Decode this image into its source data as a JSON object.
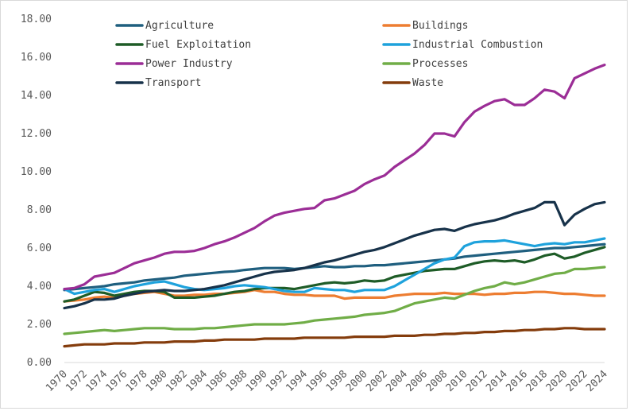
{
  "chart_data": {
    "type": "line",
    "title": "",
    "xlabel": "",
    "ylabel": "",
    "ylim": [
      0,
      18
    ],
    "y_ticks": [
      "0.00",
      "2.00",
      "4.00",
      "6.00",
      "8.00",
      "10.00",
      "12.00",
      "14.00",
      "16.00",
      "18.00"
    ],
    "x_tick_labels": [
      "1970",
      "1972",
      "1974",
      "1976",
      "1978",
      "1980",
      "1982",
      "1984",
      "1986",
      "1988",
      "1990",
      "1992",
      "1994",
      "1996",
      "1998",
      "2000",
      "2002",
      "2004",
      "2006",
      "2008",
      "2010",
      "2012",
      "2014",
      "2016",
      "2018",
      "2020",
      "2022",
      "2024"
    ],
    "grid": "none",
    "legend_placement": "top",
    "x": [
      1970,
      1971,
      1972,
      1973,
      1974,
      1975,
      1976,
      1977,
      1978,
      1979,
      1980,
      1981,
      1982,
      1983,
      1984,
      1985,
      1986,
      1987,
      1988,
      1989,
      1990,
      1991,
      1992,
      1993,
      1994,
      1995,
      1996,
      1997,
      1998,
      1999,
      2000,
      2001,
      2002,
      2003,
      2004,
      2005,
      2006,
      2007,
      2008,
      2009,
      2010,
      2011,
      2012,
      2013,
      2014,
      2015,
      2016,
      2017,
      2018,
      2019,
      2020,
      2021,
      2022,
      2023,
      2024
    ],
    "series": [
      {
        "name": "Agriculture",
        "color": "#1f5f7f",
        "values": [
          3.8,
          3.85,
          3.9,
          3.95,
          4.0,
          4.1,
          4.15,
          4.2,
          4.3,
          4.35,
          4.4,
          4.45,
          4.55,
          4.6,
          4.65,
          4.7,
          4.75,
          4.78,
          4.85,
          4.9,
          4.95,
          4.95,
          4.95,
          4.9,
          4.95,
          5.0,
          5.05,
          5.0,
          5.0,
          5.05,
          5.05,
          5.1,
          5.1,
          5.15,
          5.2,
          5.25,
          5.3,
          5.35,
          5.4,
          5.45,
          5.55,
          5.6,
          5.65,
          5.7,
          5.75,
          5.8,
          5.85,
          5.9,
          5.95,
          6.0,
          6.0,
          6.05,
          6.1,
          6.15,
          6.2
        ]
      },
      {
        "name": "Buildings",
        "color": "#ed7d31",
        "values": [
          3.2,
          3.25,
          3.3,
          3.4,
          3.45,
          3.4,
          3.5,
          3.6,
          3.65,
          3.7,
          3.6,
          3.5,
          3.5,
          3.55,
          3.55,
          3.6,
          3.6,
          3.65,
          3.7,
          3.8,
          3.7,
          3.7,
          3.6,
          3.55,
          3.55,
          3.5,
          3.5,
          3.5,
          3.35,
          3.4,
          3.4,
          3.4,
          3.4,
          3.5,
          3.55,
          3.6,
          3.6,
          3.6,
          3.65,
          3.6,
          3.6,
          3.6,
          3.55,
          3.6,
          3.6,
          3.65,
          3.65,
          3.7,
          3.7,
          3.65,
          3.6,
          3.6,
          3.55,
          3.5,
          3.5
        ]
      },
      {
        "name": "Fuel Exploitation",
        "color": "#1e5c27",
        "values": [
          3.2,
          3.3,
          3.5,
          3.7,
          3.65,
          3.5,
          3.6,
          3.7,
          3.75,
          3.75,
          3.7,
          3.4,
          3.4,
          3.4,
          3.45,
          3.5,
          3.6,
          3.7,
          3.75,
          3.85,
          3.9,
          3.9,
          3.9,
          3.85,
          3.95,
          4.05,
          4.15,
          4.2,
          4.15,
          4.2,
          4.3,
          4.25,
          4.3,
          4.5,
          4.6,
          4.7,
          4.8,
          4.85,
          4.9,
          4.9,
          5.05,
          5.2,
          5.3,
          5.35,
          5.3,
          5.35,
          5.25,
          5.4,
          5.6,
          5.7,
          5.45,
          5.55,
          5.75,
          5.9,
          6.05
        ]
      },
      {
        "name": "Industrial Combustion",
        "color": "#1ea2dc",
        "values": [
          3.85,
          3.6,
          3.7,
          3.8,
          3.85,
          3.7,
          3.85,
          4.0,
          4.1,
          4.2,
          4.25,
          4.1,
          3.95,
          3.85,
          3.8,
          3.85,
          3.9,
          4.0,
          4.05,
          4.0,
          3.95,
          3.85,
          3.75,
          3.7,
          3.7,
          3.9,
          3.85,
          3.8,
          3.8,
          3.7,
          3.8,
          3.8,
          3.8,
          4.0,
          4.3,
          4.6,
          4.9,
          5.2,
          5.4,
          5.5,
          6.1,
          6.3,
          6.35,
          6.35,
          6.4,
          6.3,
          6.2,
          6.1,
          6.2,
          6.25,
          6.2,
          6.3,
          6.3,
          6.4,
          6.5
        ]
      },
      {
        "name": "Power Industry",
        "color": "#9b2d96",
        "values": [
          3.85,
          3.9,
          4.1,
          4.5,
          4.6,
          4.7,
          4.95,
          5.2,
          5.35,
          5.5,
          5.7,
          5.8,
          5.8,
          5.85,
          6.0,
          6.2,
          6.35,
          6.55,
          6.8,
          7.05,
          7.4,
          7.7,
          7.85,
          7.95,
          8.05,
          8.1,
          8.5,
          8.6,
          8.8,
          9.0,
          9.35,
          9.6,
          9.8,
          10.25,
          10.6,
          10.95,
          11.4,
          12.0,
          12.0,
          11.85,
          12.6,
          13.15,
          13.45,
          13.7,
          13.8,
          13.5,
          13.5,
          13.85,
          14.3,
          14.2,
          13.85,
          14.9,
          15.15,
          15.4,
          15.6
        ]
      },
      {
        "name": "Processes",
        "color": "#70ad47",
        "values": [
          1.5,
          1.55,
          1.6,
          1.65,
          1.7,
          1.65,
          1.7,
          1.75,
          1.8,
          1.8,
          1.8,
          1.75,
          1.75,
          1.75,
          1.8,
          1.8,
          1.85,
          1.9,
          1.95,
          2.0,
          2.0,
          2.0,
          2.0,
          2.05,
          2.1,
          2.2,
          2.25,
          2.3,
          2.35,
          2.4,
          2.5,
          2.55,
          2.6,
          2.7,
          2.9,
          3.1,
          3.2,
          3.3,
          3.4,
          3.35,
          3.55,
          3.75,
          3.9,
          4.0,
          4.2,
          4.1,
          4.2,
          4.35,
          4.5,
          4.65,
          4.7,
          4.9,
          4.9,
          4.95,
          5.0
        ]
      },
      {
        "name": "Transport",
        "color": "#17324a",
        "values": [
          2.85,
          2.95,
          3.1,
          3.3,
          3.3,
          3.35,
          3.5,
          3.6,
          3.7,
          3.75,
          3.8,
          3.75,
          3.75,
          3.8,
          3.85,
          3.95,
          4.05,
          4.2,
          4.35,
          4.5,
          4.65,
          4.75,
          4.8,
          4.85,
          4.95,
          5.1,
          5.25,
          5.35,
          5.5,
          5.65,
          5.8,
          5.9,
          6.05,
          6.25,
          6.45,
          6.65,
          6.8,
          6.95,
          7.0,
          6.9,
          7.1,
          7.25,
          7.35,
          7.45,
          7.6,
          7.8,
          7.95,
          8.1,
          8.4,
          8.4,
          7.2,
          7.75,
          8.05,
          8.3,
          8.4
        ]
      },
      {
        "name": "Waste",
        "color": "#843c0c",
        "values": [
          0.85,
          0.9,
          0.95,
          0.95,
          0.95,
          1.0,
          1.0,
          1.0,
          1.05,
          1.05,
          1.05,
          1.1,
          1.1,
          1.1,
          1.15,
          1.15,
          1.2,
          1.2,
          1.2,
          1.2,
          1.25,
          1.25,
          1.25,
          1.25,
          1.3,
          1.3,
          1.3,
          1.3,
          1.3,
          1.35,
          1.35,
          1.35,
          1.35,
          1.4,
          1.4,
          1.4,
          1.45,
          1.45,
          1.5,
          1.5,
          1.55,
          1.55,
          1.6,
          1.6,
          1.65,
          1.65,
          1.7,
          1.7,
          1.75,
          1.75,
          1.8,
          1.8,
          1.75,
          1.75,
          1.75
        ]
      }
    ]
  }
}
